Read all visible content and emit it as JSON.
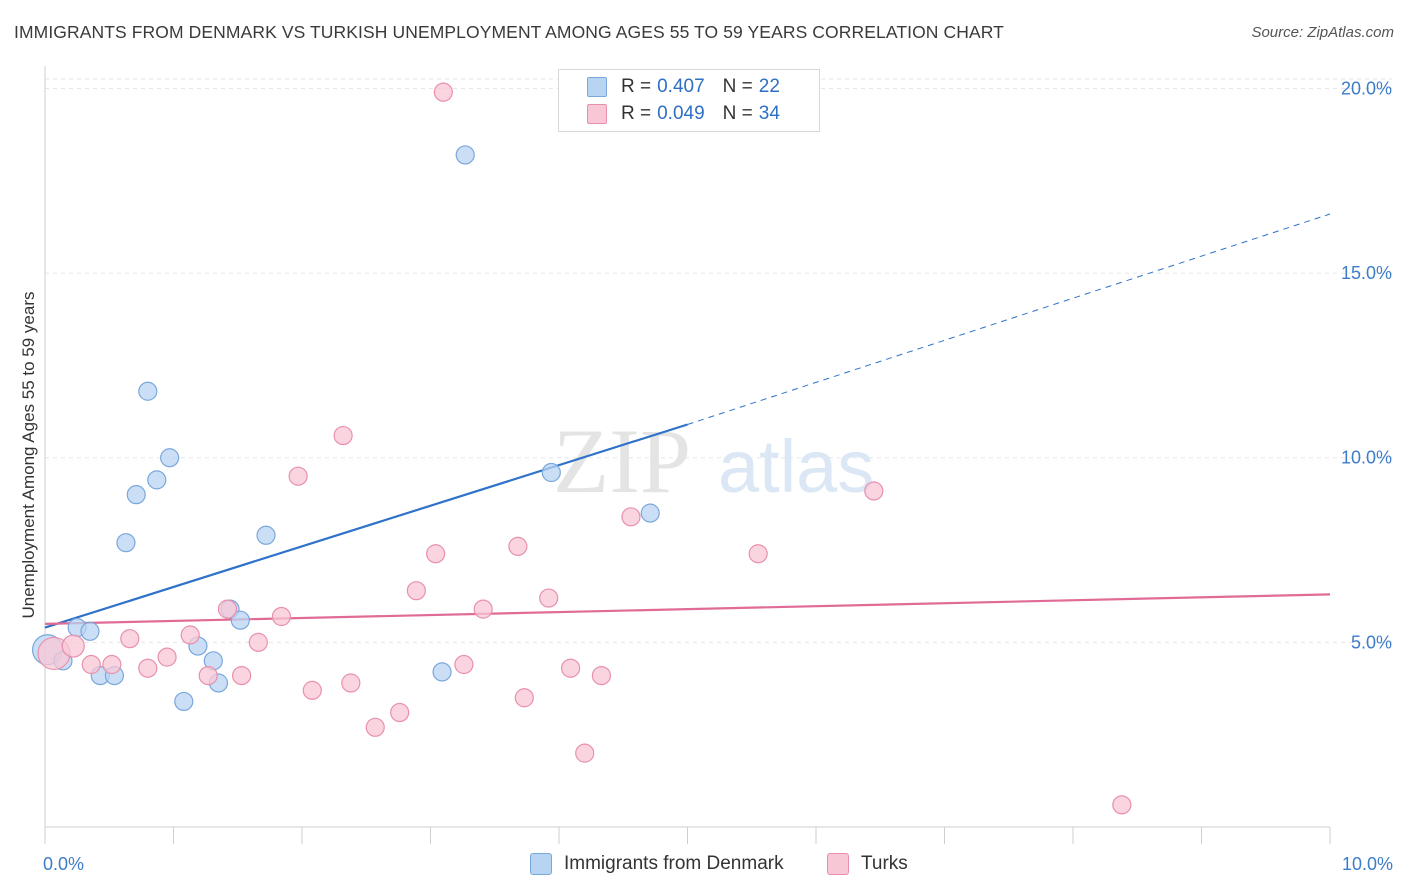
{
  "title": "IMMIGRANTS FROM DENMARK VS TURKISH UNEMPLOYMENT AMONG AGES 55 TO 59 YEARS CORRELATION CHART",
  "source": "Source: ZipAtlas.com",
  "watermark": "ZIPatlas",
  "colors": {
    "denmark_fill": "#b8d4f3",
    "denmark_stroke": "#7aa7dc",
    "denmark_line": "#2f72c9",
    "turks_fill": "#f8c7d6",
    "turks_stroke": "#e890ad",
    "turks_line": "#e06b96",
    "axis_text": "#3d7cc9",
    "grid": "#e6e6e6"
  },
  "legend": {
    "rows": [
      {
        "r_label": "R =",
        "r_value": "0.407",
        "n_label": "N =",
        "n_value": "22"
      },
      {
        "r_label": "R =",
        "r_value": "0.049",
        "n_label": "N =",
        "n_value": "34"
      }
    ]
  },
  "bottom_legend": {
    "denmark": "Immigrants from Denmark",
    "turks": "Turks"
  },
  "chart_data": {
    "type": "scatter",
    "title": "IMMIGRANTS FROM DENMARK VS TURKISH UNEMPLOYMENT AMONG AGES 55 TO 59 YEARS CORRELATION CHART",
    "xlabel": "",
    "ylabel": "Unemployment Among Ages 55 to 59 years",
    "xlim": [
      0,
      10
    ],
    "ylim": [
      0,
      20.5
    ],
    "x_tick_labels": [
      "0.0%",
      "10.0%"
    ],
    "y_ticks": [
      5,
      10,
      15,
      20
    ],
    "y_tick_labels": [
      "5.0%",
      "10.0%",
      "15.0%",
      "20.0%"
    ],
    "series": [
      {
        "name": "Immigrants from Denmark",
        "r": 0.407,
        "n": 22,
        "points": [
          {
            "x": 0.02,
            "y": 4.8,
            "size": 15
          },
          {
            "x": 0.14,
            "y": 4.5,
            "size": 9
          },
          {
            "x": 0.25,
            "y": 5.4,
            "size": 9
          },
          {
            "x": 0.35,
            "y": 5.3,
            "size": 9
          },
          {
            "x": 0.43,
            "y": 4.1,
            "size": 9
          },
          {
            "x": 0.54,
            "y": 4.1,
            "size": 9
          },
          {
            "x": 0.63,
            "y": 7.7,
            "size": 9
          },
          {
            "x": 0.71,
            "y": 9.0,
            "size": 9
          },
          {
            "x": 0.8,
            "y": 11.8,
            "size": 9
          },
          {
            "x": 0.87,
            "y": 9.4,
            "size": 9
          },
          {
            "x": 0.97,
            "y": 10.0,
            "size": 9
          },
          {
            "x": 1.08,
            "y": 3.4,
            "size": 9
          },
          {
            "x": 1.19,
            "y": 4.9,
            "size": 9
          },
          {
            "x": 1.31,
            "y": 4.5,
            "size": 9
          },
          {
            "x": 1.35,
            "y": 3.9,
            "size": 9
          },
          {
            "x": 1.44,
            "y": 5.9,
            "size": 9
          },
          {
            "x": 1.52,
            "y": 5.6,
            "size": 9
          },
          {
            "x": 1.72,
            "y": 7.9,
            "size": 9
          },
          {
            "x": 3.09,
            "y": 4.2,
            "size": 9
          },
          {
            "x": 3.27,
            "y": 18.2,
            "size": 9
          },
          {
            "x": 3.94,
            "y": 9.6,
            "size": 9
          },
          {
            "x": 4.71,
            "y": 8.5,
            "size": 9
          }
        ],
        "trend": {
          "x0": 0.0,
          "y0": 5.4,
          "x1": 5.0,
          "y1": 10.9,
          "x_dash_end": 10.0,
          "y_dash_end": 16.6
        }
      },
      {
        "name": "Turks",
        "r": 0.049,
        "n": 34,
        "points": [
          {
            "x": 0.07,
            "y": 4.7,
            "size": 16
          },
          {
            "x": 0.22,
            "y": 4.9,
            "size": 11
          },
          {
            "x": 0.36,
            "y": 4.4,
            "size": 9
          },
          {
            "x": 0.52,
            "y": 4.4,
            "size": 9
          },
          {
            "x": 0.66,
            "y": 5.1,
            "size": 9
          },
          {
            "x": 0.8,
            "y": 4.3,
            "size": 9
          },
          {
            "x": 0.95,
            "y": 4.6,
            "size": 9
          },
          {
            "x": 1.13,
            "y": 5.2,
            "size": 9
          },
          {
            "x": 1.27,
            "y": 4.1,
            "size": 9
          },
          {
            "x": 1.42,
            "y": 5.9,
            "size": 9
          },
          {
            "x": 1.53,
            "y": 4.1,
            "size": 9
          },
          {
            "x": 1.66,
            "y": 5.0,
            "size": 9
          },
          {
            "x": 1.84,
            "y": 5.7,
            "size": 9
          },
          {
            "x": 1.97,
            "y": 9.5,
            "size": 9
          },
          {
            "x": 2.08,
            "y": 3.7,
            "size": 9
          },
          {
            "x": 2.32,
            "y": 10.6,
            "size": 9
          },
          {
            "x": 2.38,
            "y": 3.9,
            "size": 9
          },
          {
            "x": 2.57,
            "y": 2.7,
            "size": 9
          },
          {
            "x": 2.76,
            "y": 3.1,
            "size": 9
          },
          {
            "x": 2.89,
            "y": 6.4,
            "size": 9
          },
          {
            "x": 3.04,
            "y": 7.4,
            "size": 9
          },
          {
            "x": 3.1,
            "y": 19.9,
            "size": 9
          },
          {
            "x": 3.26,
            "y": 4.4,
            "size": 9
          },
          {
            "x": 3.41,
            "y": 5.9,
            "size": 9
          },
          {
            "x": 3.68,
            "y": 7.6,
            "size": 9
          },
          {
            "x": 3.73,
            "y": 3.5,
            "size": 9
          },
          {
            "x": 3.92,
            "y": 6.2,
            "size": 9
          },
          {
            "x": 4.09,
            "y": 4.3,
            "size": 9
          },
          {
            "x": 4.2,
            "y": 2.0,
            "size": 9
          },
          {
            "x": 4.33,
            "y": 4.1,
            "size": 9
          },
          {
            "x": 4.56,
            "y": 8.4,
            "size": 9
          },
          {
            "x": 5.55,
            "y": 7.4,
            "size": 9
          },
          {
            "x": 6.45,
            "y": 9.1,
            "size": 9
          },
          {
            "x": 8.38,
            "y": 0.6,
            "size": 9
          }
        ],
        "trend": {
          "x0": 0.0,
          "y0": 5.5,
          "x1": 10.0,
          "y1": 6.3
        }
      }
    ]
  }
}
